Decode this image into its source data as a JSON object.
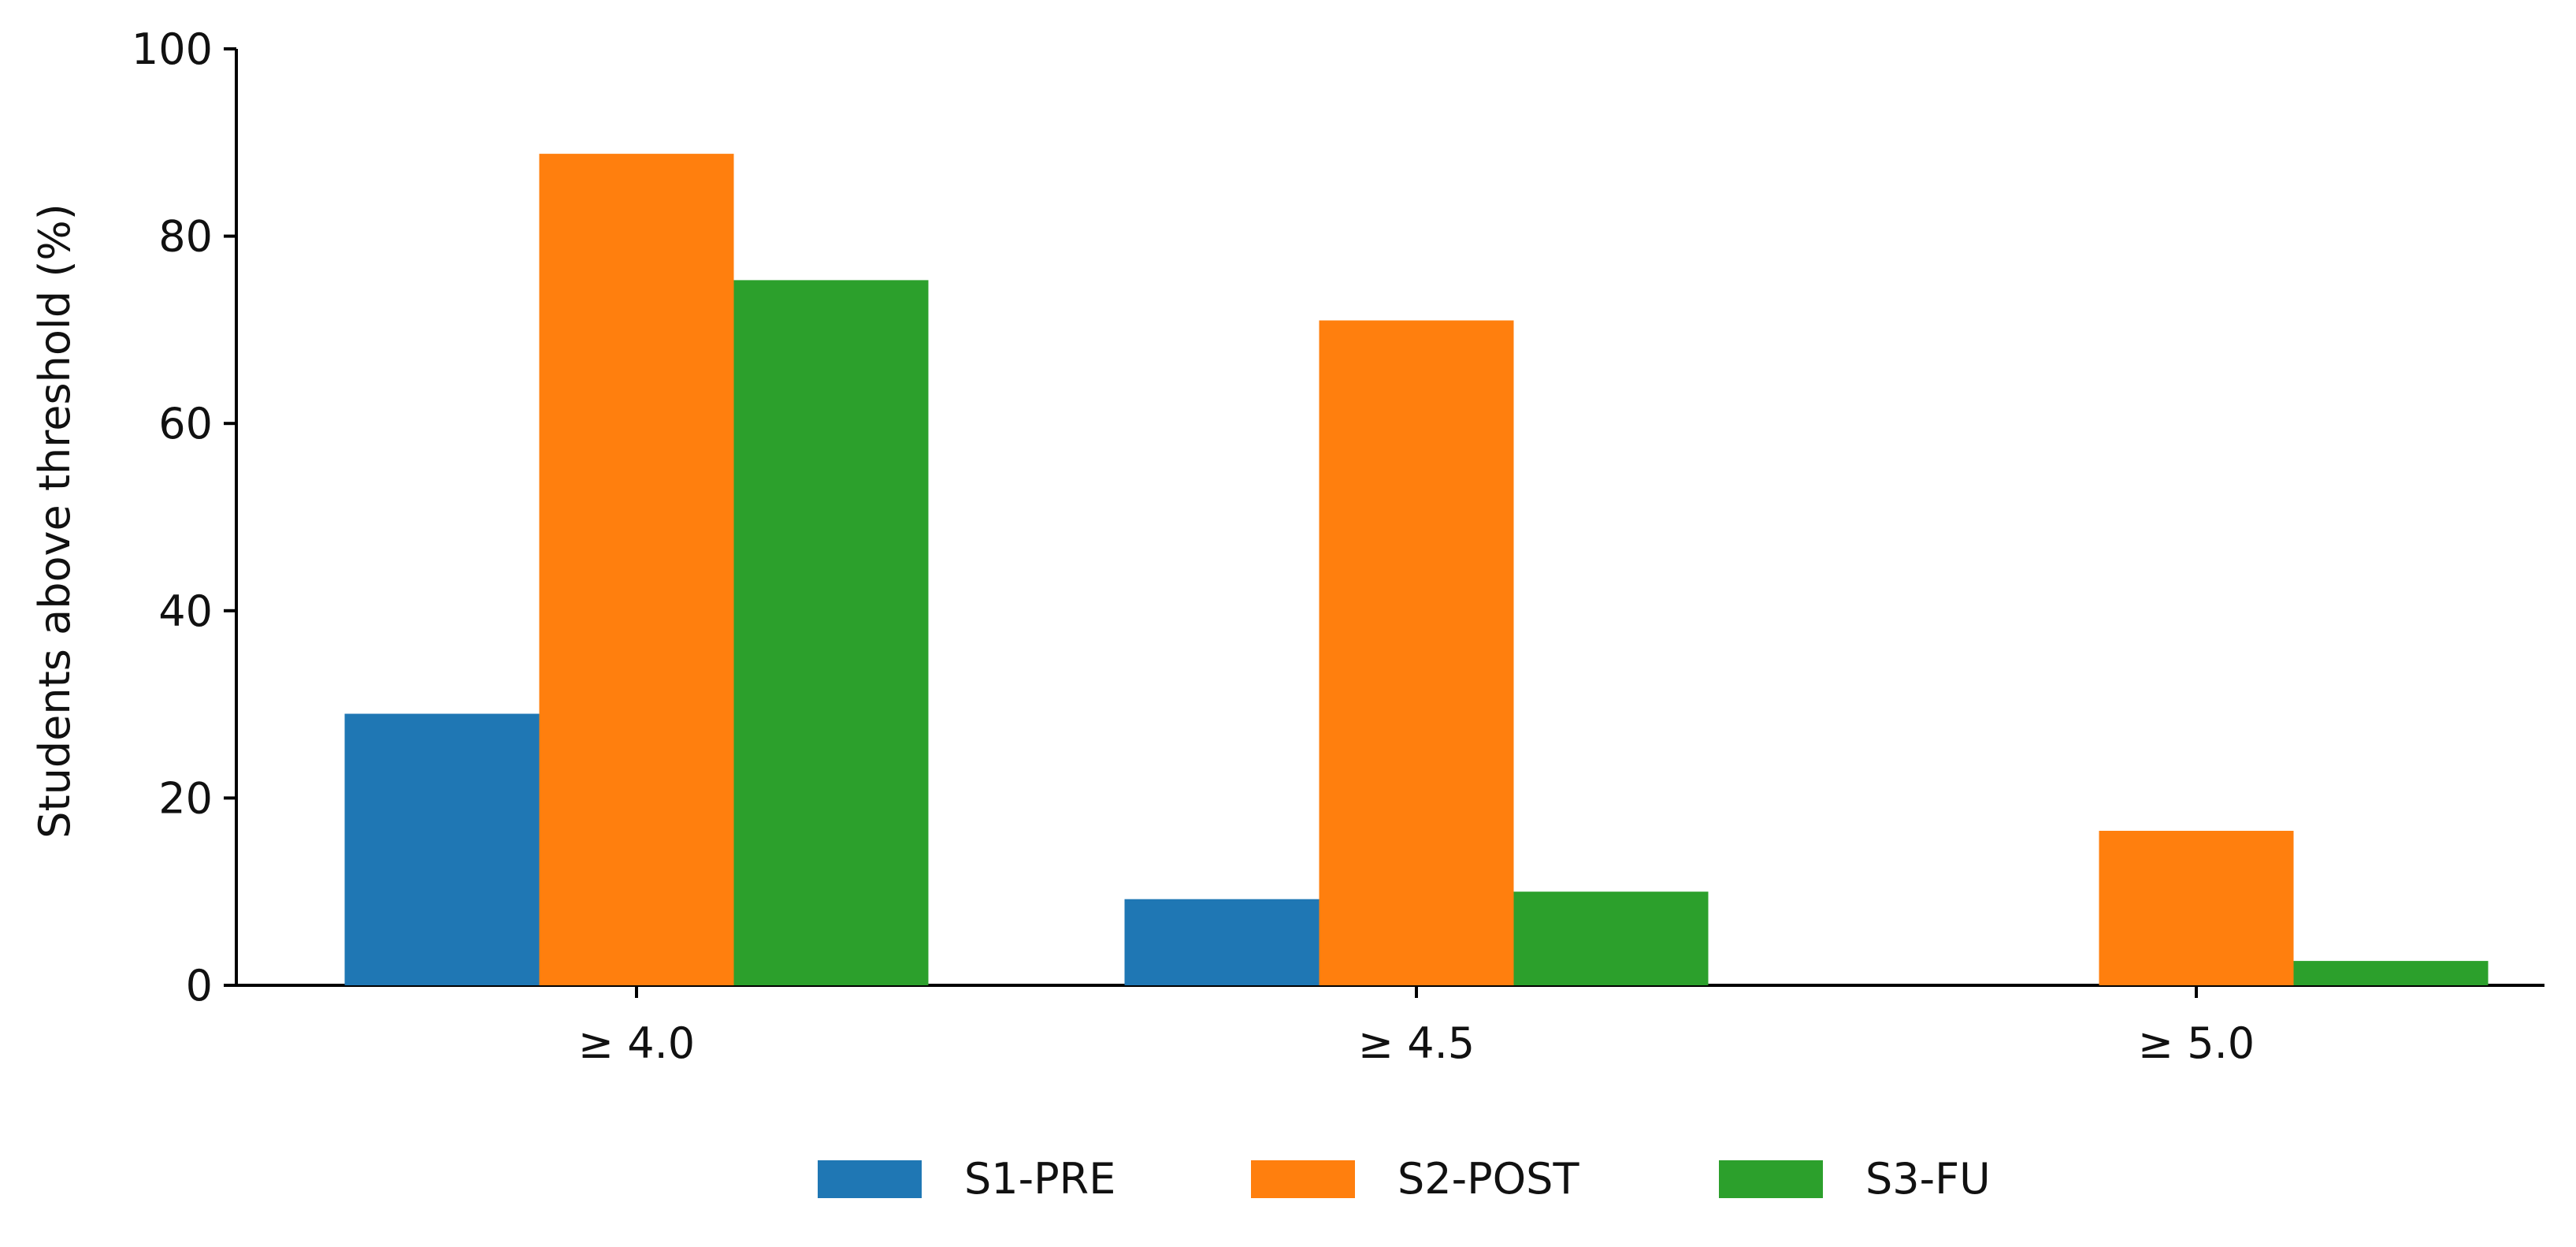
{
  "chart_data": {
    "type": "bar",
    "title": "",
    "xlabel": "",
    "ylabel": "Students above threshold (%)",
    "categories": [
      "≥ 4.0",
      "≥ 4.5",
      "≥ 5.0"
    ],
    "ylim": [
      0,
      100
    ],
    "yticks": [
      0,
      20,
      40,
      60,
      80,
      100
    ],
    "grid": false,
    "legend_position": "bottom-center",
    "series": [
      {
        "name": "S1-PRE",
        "color": "#1f77b4",
        "values": [
          29.0,
          9.2,
          0.0
        ]
      },
      {
        "name": "S2-POST",
        "color": "#ff7f0e",
        "values": [
          88.8,
          71.0,
          16.5
        ]
      },
      {
        "name": "S3-FU",
        "color": "#2ca02c",
        "values": [
          75.3,
          10.0,
          2.6
        ]
      }
    ]
  }
}
